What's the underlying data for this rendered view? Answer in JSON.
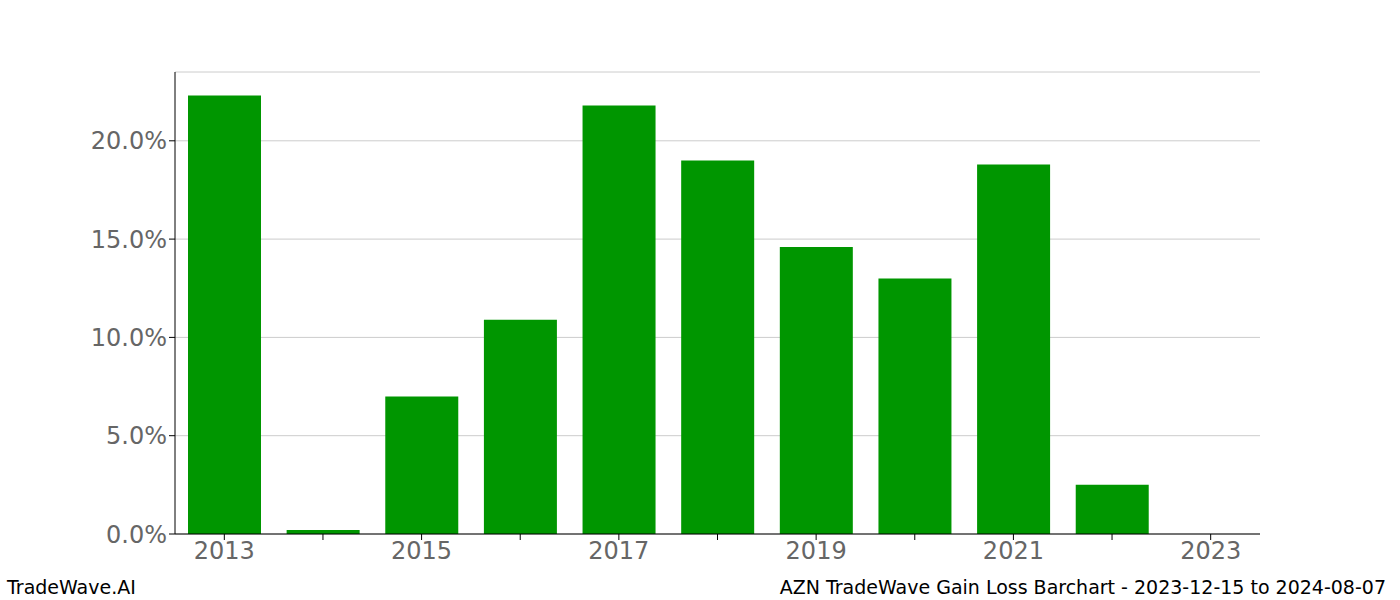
{
  "chart_data": {
    "type": "bar",
    "title": "AZN TradeWave Gain Loss Barchart - 2023-12-15 to 2024-08-07",
    "source": "TradeWave.AI",
    "categories": [
      "2013",
      null,
      "2015",
      null,
      "2017",
      null,
      "2019",
      null,
      "2021",
      null,
      "2023"
    ],
    "values": [
      22.3,
      0.2,
      7.0,
      10.9,
      21.8,
      19.0,
      14.6,
      13.0,
      18.8,
      2.5,
      0
    ],
    "color": "#009600",
    "ylim": [
      0,
      23.5
    ],
    "yticks": [
      {
        "value": 0,
        "label": "0.0%"
      },
      {
        "value": 5,
        "label": "5.0%"
      },
      {
        "value": 10,
        "label": "10.0%"
      },
      {
        "value": 15,
        "label": "15.0%"
      },
      {
        "value": 20,
        "label": "20.0%"
      }
    ],
    "grid": true
  }
}
